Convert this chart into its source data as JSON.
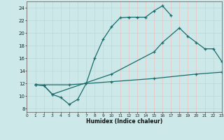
{
  "xlabel": "Humidex (Indice chaleur)",
  "bg_color": "#cce8e8",
  "grid_color": "#e8c8c8",
  "line_color": "#1a6b6b",
  "xlim": [
    0,
    23
  ],
  "ylim": [
    7.5,
    25.0
  ],
  "xticks": [
    0,
    1,
    2,
    3,
    4,
    5,
    6,
    7,
    8,
    9,
    10,
    11,
    12,
    13,
    14,
    15,
    16,
    17,
    18,
    19,
    20,
    21,
    22,
    23
  ],
  "yticks": [
    8,
    10,
    12,
    14,
    16,
    18,
    20,
    22,
    24
  ],
  "line1_x": [
    1,
    2,
    3,
    4,
    5,
    6,
    7,
    8,
    9,
    10,
    11,
    12,
    13,
    14,
    15,
    16,
    17
  ],
  "line1_y": [
    11.8,
    11.7,
    10.3,
    9.8,
    8.7,
    9.5,
    12.0,
    16.0,
    19.0,
    21.0,
    22.4,
    22.5,
    22.5,
    22.5,
    23.5,
    24.3,
    22.8
  ],
  "line2_x": [
    1,
    2,
    3,
    10,
    15,
    16,
    18,
    19,
    20,
    21,
    22,
    23
  ],
  "line2_y": [
    11.8,
    11.7,
    10.3,
    13.5,
    17.0,
    18.5,
    20.8,
    19.5,
    18.5,
    17.5,
    17.5,
    15.5
  ],
  "line3_x": [
    1,
    5,
    10,
    15,
    20,
    23
  ],
  "line3_y": [
    11.8,
    11.8,
    12.3,
    12.8,
    13.5,
    13.8
  ]
}
